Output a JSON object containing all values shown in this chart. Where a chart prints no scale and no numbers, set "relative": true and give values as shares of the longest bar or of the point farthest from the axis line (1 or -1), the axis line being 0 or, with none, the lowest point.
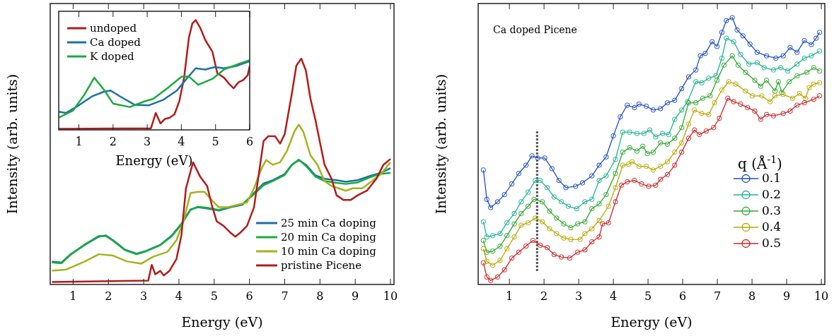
{
  "chart_data": [
    {
      "type": "line",
      "relative": true,
      "xlabel": "Energy  (eV)",
      "ylabel": "Intensity  (arb. units)",
      "xlim": [
        0.35,
        10.1
      ],
      "xticks": [
        1,
        2,
        3,
        4,
        5,
        6,
        7,
        8,
        9,
        10
      ],
      "legend": "bottom right",
      "line_style": "solid",
      "series": [
        {
          "name": "25 min Ca doping",
          "color": "#1c6fa8",
          "x": [
            0.4,
            0.67,
            0.93,
            1.33,
            1.73,
            1.93,
            2.13,
            2.47,
            2.8,
            3.07,
            3.47,
            3.8,
            4.07,
            4.33,
            4.53,
            4.8,
            5.13,
            5.47,
            5.8,
            6.13,
            6.4,
            6.67,
            7.0,
            7.2,
            7.4,
            7.6,
            7.87,
            8.13,
            8.47,
            8.73,
            9.07,
            9.47,
            9.73,
            10.0
          ],
          "values": [
            0.102,
            0.097,
            0.134,
            0.175,
            0.212,
            0.217,
            0.196,
            0.154,
            0.136,
            0.149,
            0.175,
            0.217,
            0.269,
            0.332,
            0.342,
            0.337,
            0.327,
            0.342,
            0.353,
            0.405,
            0.447,
            0.462,
            0.489,
            0.53,
            0.551,
            0.53,
            0.483,
            0.468,
            0.462,
            0.455,
            0.462,
            0.483,
            0.494,
            0.515
          ]
        },
        {
          "name": "20 min Ca doping",
          "color": "#1aab3c",
          "x": [
            0.4,
            0.67,
            0.93,
            1.33,
            1.73,
            1.93,
            2.13,
            2.47,
            2.8,
            3.07,
            3.47,
            3.8,
            4.07,
            4.33,
            4.53,
            4.8,
            5.13,
            5.47,
            5.8,
            6.13,
            6.4,
            6.67,
            7.0,
            7.2,
            7.4,
            7.6,
            7.87,
            8.13,
            8.47,
            8.73,
            9.07,
            9.47,
            9.73,
            10.0
          ],
          "values": [
            0.098,
            0.094,
            0.132,
            0.177,
            0.215,
            0.214,
            0.194,
            0.152,
            0.134,
            0.147,
            0.174,
            0.214,
            0.266,
            0.33,
            0.344,
            0.34,
            0.33,
            0.345,
            0.356,
            0.4,
            0.44,
            0.458,
            0.485,
            0.528,
            0.553,
            0.525,
            0.478,
            0.458,
            0.45,
            0.445,
            0.452,
            0.478,
            0.49,
            0.494
          ]
        },
        {
          "name": "10 min Ca doping",
          "color": "#a3b41c",
          "x": [
            0.4,
            0.8,
            1.33,
            1.73,
            2.13,
            2.53,
            2.93,
            3.27,
            3.67,
            3.93,
            4.13,
            4.33,
            4.53,
            4.73,
            4.93,
            5.13,
            5.4,
            5.67,
            5.93,
            6.13,
            6.33,
            6.47,
            6.67,
            6.87,
            7.07,
            7.27,
            7.4,
            7.53,
            7.73,
            7.93,
            8.13,
            8.33,
            8.53,
            8.73,
            8.93,
            9.2,
            9.47,
            9.73,
            10.0
          ],
          "values": [
            0.061,
            0.066,
            0.102,
            0.134,
            0.128,
            0.102,
            0.092,
            0.123,
            0.144,
            0.196,
            0.28,
            0.405,
            0.41,
            0.41,
            0.374,
            0.342,
            0.342,
            0.353,
            0.363,
            0.426,
            0.509,
            0.551,
            0.53,
            0.541,
            0.593,
            0.676,
            0.708,
            0.676,
            0.572,
            0.53,
            0.457,
            0.436,
            0.426,
            0.415,
            0.426,
            0.426,
            0.457,
            0.489,
            0.541
          ]
        },
        {
          "name": "pristine Picene",
          "color": "#b01c1c",
          "x": [
            0.4,
            3.13,
            3.23,
            3.33,
            3.47,
            3.57,
            3.73,
            3.93,
            4.07,
            4.2,
            4.4,
            4.6,
            4.8,
            4.93,
            5.07,
            5.27,
            5.47,
            5.6,
            5.73,
            5.93,
            6.13,
            6.4,
            6.53,
            6.73,
            6.87,
            7.0,
            7.2,
            7.33,
            7.47,
            7.6,
            7.73,
            7.87,
            8.13,
            8.33,
            8.47,
            8.67,
            8.87,
            9.07,
            9.33,
            9.6,
            9.8,
            10.0
          ],
          "values": [
            0.011,
            0.017,
            0.087,
            0.045,
            0.06,
            0.04,
            0.06,
            0.113,
            0.217,
            0.426,
            0.541,
            0.478,
            0.436,
            0.353,
            0.28,
            0.259,
            0.228,
            0.212,
            0.228,
            0.259,
            0.342,
            0.635,
            0.656,
            0.656,
            0.624,
            0.666,
            0.843,
            0.969,
            1.0,
            0.948,
            0.823,
            0.729,
            0.53,
            0.468,
            0.395,
            0.374,
            0.374,
            0.395,
            0.415,
            0.468,
            0.53,
            0.556
          ]
        }
      ]
    },
    {
      "type": "line",
      "relative": true,
      "xlabel": "Energy (eV)",
      "xlim": [
        0.41,
        6.0
      ],
      "xticks": [
        1,
        2,
        3,
        4,
        5,
        6
      ],
      "legend": "top left",
      "line_style": "solid",
      "series": [
        {
          "name": "undoped",
          "color": "#b01c1c",
          "x": [
            0.41,
            3.11,
            3.25,
            3.39,
            3.52,
            3.66,
            3.8,
            3.94,
            4.08,
            4.22,
            4.32,
            4.42,
            4.56,
            4.7,
            4.91,
            5.05,
            5.25,
            5.39,
            5.53,
            5.67,
            5.81,
            5.94,
            6.0
          ],
          "values": [
            0.009,
            0.015,
            0.154,
            0.058,
            0.1,
            0.111,
            0.143,
            0.261,
            0.475,
            0.839,
            0.968,
            1.0,
            0.925,
            0.818,
            0.711,
            0.518,
            0.475,
            0.422,
            0.379,
            0.433,
            0.454,
            0.497,
            0.582
          ]
        },
        {
          "name": "Ca doped",
          "color": "#1c6fa8",
          "x": [
            0.41,
            0.62,
            0.97,
            1.38,
            1.73,
            1.93,
            2.21,
            2.63,
            3.04,
            3.46,
            3.87,
            4.15,
            4.42,
            4.7,
            4.98,
            5.25,
            5.6,
            6.0
          ],
          "values": [
            0.165,
            0.154,
            0.218,
            0.304,
            0.347,
            0.358,
            0.304,
            0.229,
            0.223,
            0.272,
            0.358,
            0.465,
            0.561,
            0.55,
            0.572,
            0.561,
            0.582,
            0.625
          ]
        },
        {
          "name": "K doped",
          "color": "#1aab3c",
          "x": [
            0.41,
            0.83,
            1.17,
            1.45,
            1.73,
            2.0,
            2.49,
            2.9,
            3.18,
            3.59,
            4.01,
            4.22,
            4.49,
            4.91,
            5.25,
            5.67,
            6.0
          ],
          "values": [
            0.111,
            0.176,
            0.325,
            0.475,
            0.368,
            0.24,
            0.208,
            0.257,
            0.283,
            0.379,
            0.486,
            0.486,
            0.411,
            0.465,
            0.55,
            0.6,
            0.636
          ]
        }
      ]
    },
    {
      "type": "line",
      "relative": true,
      "xlabel": "Energy  (eV)",
      "ylabel": "Intensity  (arb. units)",
      "xlim": [
        0.1,
        10.1
      ],
      "xticks": [
        1,
        2,
        3,
        4,
        5,
        6,
        7,
        8,
        9,
        10
      ],
      "legend": "right",
      "legend_title": "q (Å$^{-1}$)",
      "marker": "circle",
      "line_style": "solid",
      "annotations": [
        "Ca doped Picene"
      ],
      "ref_lines": [
        {
          "axis": "x",
          "value": 1.8,
          "label": null,
          "color": "#555555",
          "line_style": "dotted"
        }
      ],
      "series": [
        {
          "name": "0.1",
          "color": "#1f4fc4",
          "x": [
            0.25,
            0.35,
            0.46,
            0.66,
            0.86,
            1.07,
            1.27,
            1.48,
            1.65,
            1.82,
            2.02,
            2.23,
            2.43,
            2.63,
            2.91,
            3.11,
            3.38,
            3.59,
            3.79,
            4.0,
            4.2,
            4.4,
            4.61,
            4.74,
            4.95,
            5.15,
            5.36,
            5.56,
            5.77,
            5.97,
            6.17,
            6.38,
            6.51,
            6.65,
            6.85,
            6.99,
            7.13,
            7.26,
            7.43,
            7.57,
            7.74,
            7.94,
            8.15,
            8.42,
            8.69,
            8.9,
            9.1,
            9.3,
            9.51,
            9.71,
            9.85,
            9.95
          ],
          "values": [
            0.429,
            0.319,
            0.288,
            0.31,
            0.337,
            0.377,
            0.416,
            0.447,
            0.482,
            0.474,
            0.474,
            0.434,
            0.39,
            0.363,
            0.368,
            0.381,
            0.407,
            0.447,
            0.478,
            0.557,
            0.628,
            0.672,
            0.663,
            0.676,
            0.668,
            0.654,
            0.659,
            0.681,
            0.69,
            0.734,
            0.778,
            0.804,
            0.857,
            0.866,
            0.91,
            0.892,
            0.945,
            0.989,
            1.0,
            0.954,
            0.932,
            0.901,
            0.87,
            0.857,
            0.848,
            0.857,
            0.888,
            0.87,
            0.914,
            0.899,
            0.923,
            0.945
          ]
        },
        {
          "name": "0.2",
          "color": "#1fb38f",
          "x": [
            0.25,
            0.35,
            0.52,
            0.73,
            0.93,
            1.14,
            1.34,
            1.54,
            1.75,
            1.89,
            2.09,
            2.29,
            2.5,
            2.7,
            2.94,
            3.18,
            3.38,
            3.59,
            3.79,
            4.06,
            4.27,
            4.47,
            4.68,
            4.88,
            5.05,
            5.22,
            5.42,
            5.6,
            5.77,
            5.97,
            6.14,
            6.38,
            6.55,
            6.75,
            6.96,
            7.13,
            7.26,
            7.47,
            7.67,
            7.91,
            8.15,
            8.35,
            8.62,
            8.83,
            9.03,
            9.3,
            9.51,
            9.71,
            9.95
          ],
          "values": [
            0.235,
            0.178,
            0.183,
            0.191,
            0.231,
            0.266,
            0.31,
            0.346,
            0.39,
            0.39,
            0.363,
            0.328,
            0.31,
            0.293,
            0.284,
            0.31,
            0.319,
            0.39,
            0.407,
            0.469,
            0.571,
            0.571,
            0.566,
            0.566,
            0.579,
            0.553,
            0.566,
            0.562,
            0.619,
            0.654,
            0.685,
            0.76,
            0.756,
            0.773,
            0.782,
            0.848,
            0.923,
            0.91,
            0.862,
            0.826,
            0.831,
            0.813,
            0.804,
            0.813,
            0.8,
            0.826,
            0.848,
            0.857,
            0.875
          ]
        },
        {
          "name": "0.3",
          "color": "#2ea82e",
          "x": [
            0.25,
            0.35,
            0.52,
            0.73,
            0.93,
            1.14,
            1.34,
            1.54,
            1.71,
            1.95,
            2.16,
            2.36,
            2.57,
            2.77,
            2.97,
            3.18,
            3.38,
            3.59,
            3.79,
            4.06,
            4.27,
            4.47,
            4.68,
            4.85,
            4.98,
            5.15,
            5.36,
            5.56,
            5.77,
            5.97,
            6.17,
            6.38,
            6.58,
            6.79,
            6.99,
            7.19,
            7.43,
            7.6,
            7.81,
            8.08,
            8.25,
            8.42,
            8.66,
            8.76,
            8.86,
            9.07,
            9.3,
            9.58,
            9.78,
            9.95
          ],
          "values": [
            0.165,
            0.121,
            0.125,
            0.143,
            0.183,
            0.227,
            0.266,
            0.293,
            0.319,
            0.31,
            0.275,
            0.249,
            0.227,
            0.213,
            0.227,
            0.235,
            0.284,
            0.302,
            0.337,
            0.416,
            0.496,
            0.513,
            0.5,
            0.518,
            0.491,
            0.496,
            0.531,
            0.526,
            0.548,
            0.588,
            0.681,
            0.681,
            0.698,
            0.707,
            0.765,
            0.822,
            0.857,
            0.822,
            0.795,
            0.765,
            0.743,
            0.765,
            0.725,
            0.76,
            0.72,
            0.76,
            0.782,
            0.795,
            0.813,
            0.8
          ]
        },
        {
          "name": "0.4",
          "color": "#b8a800",
          "x": [
            0.25,
            0.35,
            0.52,
            0.73,
            0.93,
            1.14,
            1.34,
            1.54,
            1.75,
            1.95,
            2.16,
            2.36,
            2.57,
            2.77,
            3.04,
            3.18,
            3.38,
            3.59,
            3.86,
            4.06,
            4.27,
            4.44,
            4.54,
            4.74,
            4.95,
            5.15,
            5.36,
            5.56,
            5.77,
            5.97,
            6.17,
            6.34,
            6.55,
            6.75,
            6.92,
            7.13,
            7.33,
            7.53,
            7.81,
            8.01,
            8.28,
            8.52,
            8.66,
            8.9,
            9.17,
            9.37,
            9.54,
            9.65,
            9.78,
            9.95
          ],
          "values": [
            0.134,
            0.086,
            0.072,
            0.09,
            0.134,
            0.178,
            0.222,
            0.231,
            0.249,
            0.235,
            0.209,
            0.191,
            0.174,
            0.169,
            0.169,
            0.191,
            0.209,
            0.24,
            0.293,
            0.363,
            0.447,
            0.451,
            0.46,
            0.443,
            0.443,
            0.429,
            0.443,
            0.46,
            0.496,
            0.531,
            0.601,
            0.654,
            0.641,
            0.637,
            0.681,
            0.729,
            0.76,
            0.751,
            0.725,
            0.707,
            0.707,
            0.685,
            0.707,
            0.712,
            0.698,
            0.716,
            0.698,
            0.738,
            0.751,
            0.756
          ]
        },
        {
          "name": "0.5",
          "color": "#cc2424",
          "x": [
            0.25,
            0.35,
            0.46,
            0.66,
            0.86,
            1.07,
            1.27,
            1.48,
            1.68,
            1.89,
            2.09,
            2.29,
            2.5,
            2.74,
            2.97,
            3.18,
            3.38,
            3.59,
            3.69,
            3.86,
            4.06,
            4.23,
            4.4,
            4.61,
            4.81,
            5.02,
            5.22,
            5.36,
            5.56,
            5.77,
            5.97,
            6.17,
            6.34,
            6.48,
            6.68,
            6.89,
            7.06,
            7.3,
            7.47,
            7.67,
            7.87,
            8.08,
            8.25,
            8.42,
            8.62,
            8.9,
            9.1,
            9.3,
            9.51,
            9.78,
            9.95
          ],
          "values": [
            0.081,
            0.028,
            0.015,
            0.028,
            0.055,
            0.099,
            0.121,
            0.144,
            0.165,
            0.147,
            0.138,
            0.112,
            0.103,
            0.099,
            0.121,
            0.13,
            0.16,
            0.178,
            0.227,
            0.231,
            0.31,
            0.372,
            0.385,
            0.39,
            0.377,
            0.368,
            0.372,
            0.394,
            0.412,
            0.447,
            0.496,
            0.548,
            0.579,
            0.562,
            0.575,
            0.588,
            0.623,
            0.698,
            0.685,
            0.676,
            0.663,
            0.65,
            0.619,
            0.637,
            0.632,
            0.641,
            0.65,
            0.672,
            0.681,
            0.694,
            0.707
          ]
        }
      ]
    }
  ]
}
